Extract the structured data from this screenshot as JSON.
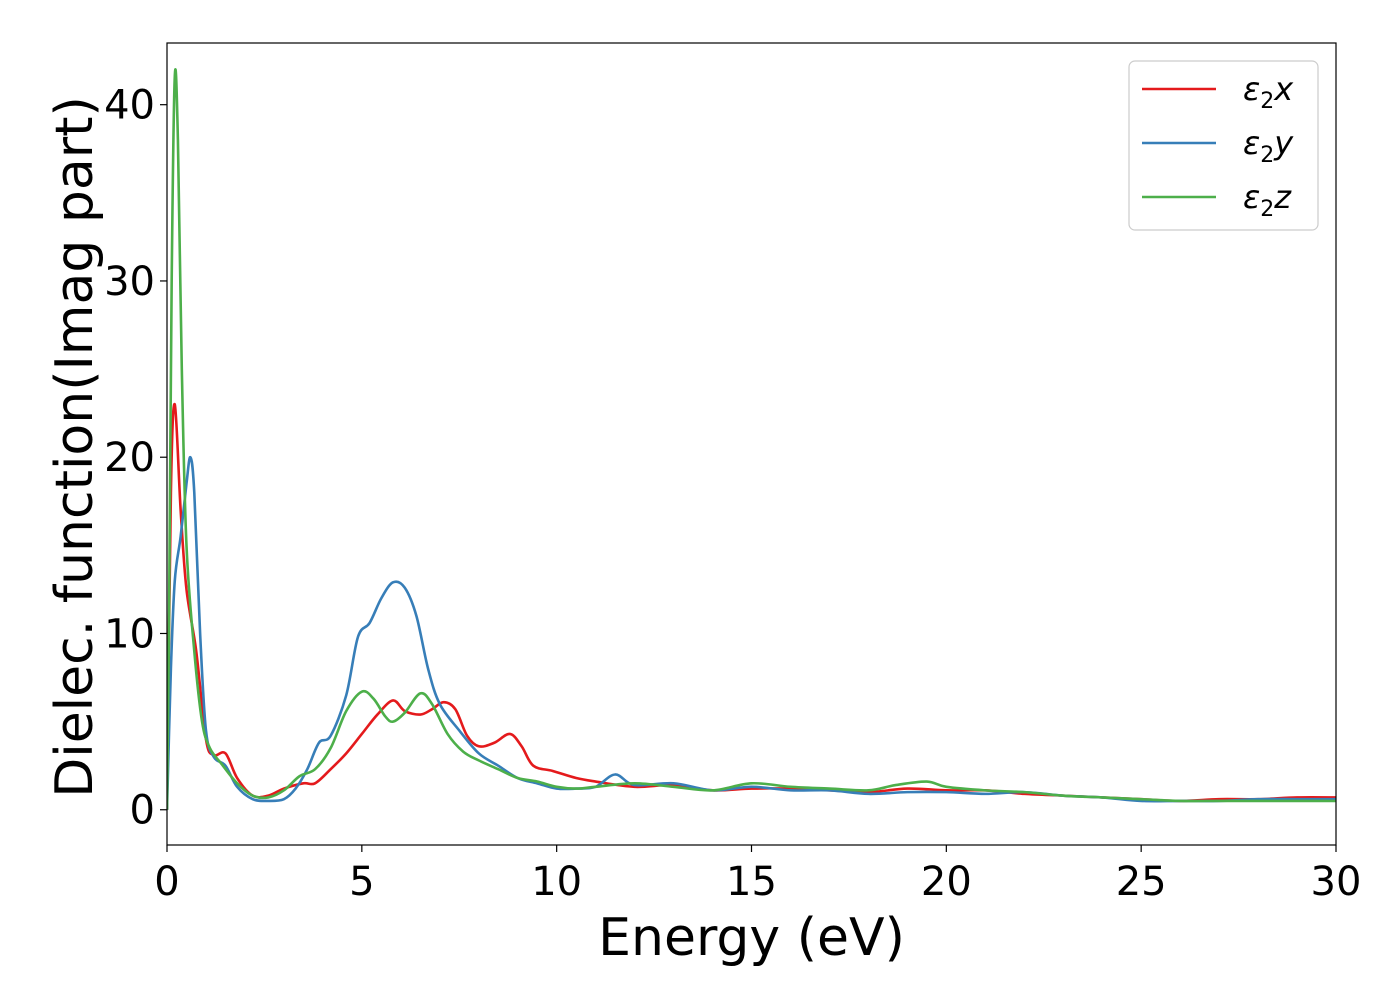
{
  "chart_data": {
    "type": "line",
    "xlabel": "Energy (eV)",
    "ylabel": "Dielec. function(Imag part)",
    "xlim": [
      0,
      30
    ],
    "ylim": [
      -2,
      43.5
    ],
    "xticks": [
      "0",
      "5",
      "10",
      "15",
      "20",
      "25",
      "30"
    ],
    "yticks": [
      "0",
      "10",
      "20",
      "30",
      "40"
    ],
    "grid": false,
    "legend_position": "top-right",
    "series": [
      {
        "name": "ε₂x",
        "legend": {
          "sym": "ε",
          "sub": "2",
          "var": "x"
        },
        "color": "#e41a1c",
        "points": [
          [
            0,
            0
          ],
          [
            0.1,
            18
          ],
          [
            0.2,
            23
          ],
          [
            0.35,
            17
          ],
          [
            0.5,
            12.5
          ],
          [
            0.75,
            9
          ],
          [
            1.0,
            4
          ],
          [
            1.2,
            3.1
          ],
          [
            1.5,
            3.2
          ],
          [
            1.8,
            1.8
          ],
          [
            2.2,
            0.8
          ],
          [
            2.6,
            0.8
          ],
          [
            3.0,
            1.2
          ],
          [
            3.5,
            1.5
          ],
          [
            3.8,
            1.5
          ],
          [
            4.2,
            2.3
          ],
          [
            4.6,
            3.2
          ],
          [
            5.0,
            4.3
          ],
          [
            5.4,
            5.4
          ],
          [
            5.8,
            6.2
          ],
          [
            6.1,
            5.6
          ],
          [
            6.5,
            5.4
          ],
          [
            6.8,
            5.7
          ],
          [
            7.1,
            6.1
          ],
          [
            7.4,
            5.7
          ],
          [
            7.7,
            4.2
          ],
          [
            8.0,
            3.6
          ],
          [
            8.4,
            3.8
          ],
          [
            8.8,
            4.3
          ],
          [
            9.1,
            3.6
          ],
          [
            9.4,
            2.5
          ],
          [
            9.9,
            2.2
          ],
          [
            10.5,
            1.8
          ],
          [
            11.0,
            1.6
          ],
          [
            12,
            1.3
          ],
          [
            13,
            1.4
          ],
          [
            14,
            1.1
          ],
          [
            15,
            1.2
          ],
          [
            16,
            1.2
          ],
          [
            17,
            1.1
          ],
          [
            18,
            1.0
          ],
          [
            19,
            1.2
          ],
          [
            20,
            1.1
          ],
          [
            21,
            1.1
          ],
          [
            22,
            0.9
          ],
          [
            23,
            0.8
          ],
          [
            24,
            0.7
          ],
          [
            25,
            0.6
          ],
          [
            26,
            0.5
          ],
          [
            27,
            0.6
          ],
          [
            28,
            0.6
          ],
          [
            29,
            0.7
          ],
          [
            30,
            0.7
          ]
        ]
      },
      {
        "name": "ε₂y",
        "legend": {
          "sym": "ε",
          "sub": "2",
          "var": "y"
        },
        "color": "#377eb8",
        "points": [
          [
            0,
            0
          ],
          [
            0.1,
            8
          ],
          [
            0.2,
            13
          ],
          [
            0.35,
            15.5
          ],
          [
            0.5,
            18.5
          ],
          [
            0.6,
            20
          ],
          [
            0.7,
            18
          ],
          [
            0.85,
            10
          ],
          [
            1.0,
            4.5
          ],
          [
            1.2,
            3
          ],
          [
            1.5,
            2.5
          ],
          [
            1.8,
            1.3
          ],
          [
            2.2,
            0.6
          ],
          [
            2.6,
            0.5
          ],
          [
            3.0,
            0.6
          ],
          [
            3.3,
            1.2
          ],
          [
            3.6,
            2.3
          ],
          [
            3.9,
            3.8
          ],
          [
            4.2,
            4.2
          ],
          [
            4.6,
            6.5
          ],
          [
            4.9,
            9.8
          ],
          [
            5.2,
            10.6
          ],
          [
            5.5,
            12
          ],
          [
            5.8,
            12.9
          ],
          [
            6.1,
            12.6
          ],
          [
            6.4,
            11
          ],
          [
            6.7,
            8.0
          ],
          [
            7.0,
            6.0
          ],
          [
            7.5,
            4.5
          ],
          [
            8.0,
            3.2
          ],
          [
            8.5,
            2.5
          ],
          [
            9.0,
            1.8
          ],
          [
            9.5,
            1.5
          ],
          [
            10,
            1.2
          ],
          [
            10.5,
            1.2
          ],
          [
            11.0,
            1.3
          ],
          [
            11.5,
            2.0
          ],
          [
            12,
            1.4
          ],
          [
            13,
            1.5
          ],
          [
            14,
            1.1
          ],
          [
            15,
            1.3
          ],
          [
            16,
            1.1
          ],
          [
            17,
            1.1
          ],
          [
            18,
            0.9
          ],
          [
            19,
            1.0
          ],
          [
            20,
            1.0
          ],
          [
            21,
            0.9
          ],
          [
            22,
            1.0
          ],
          [
            23,
            0.8
          ],
          [
            24,
            0.7
          ],
          [
            25,
            0.5
          ],
          [
            26,
            0.5
          ],
          [
            27,
            0.5
          ],
          [
            28,
            0.6
          ],
          [
            29,
            0.6
          ],
          [
            30,
            0.6
          ]
        ]
      },
      {
        "name": "ε₂z",
        "legend": {
          "sym": "ε",
          "sub": "2",
          "var": "z"
        },
        "color": "#4daf4a",
        "points": [
          [
            0,
            0
          ],
          [
            0.05,
            10
          ],
          [
            0.12,
            30
          ],
          [
            0.2,
            41.6
          ],
          [
            0.28,
            38
          ],
          [
            0.38,
            25
          ],
          [
            0.5,
            15
          ],
          [
            0.7,
            9
          ],
          [
            0.9,
            5
          ],
          [
            1.1,
            3.5
          ],
          [
            1.4,
            2.6
          ],
          [
            1.8,
            1.5
          ],
          [
            2.2,
            0.8
          ],
          [
            2.6,
            0.7
          ],
          [
            3.0,
            1.1
          ],
          [
            3.4,
            1.9
          ],
          [
            3.8,
            2.3
          ],
          [
            4.2,
            3.5
          ],
          [
            4.6,
            5.6
          ],
          [
            5.0,
            6.7
          ],
          [
            5.3,
            6.3
          ],
          [
            5.6,
            5.3
          ],
          [
            5.8,
            5.0
          ],
          [
            6.1,
            5.5
          ],
          [
            6.5,
            6.6
          ],
          [
            6.8,
            6.0
          ],
          [
            7.2,
            4.3
          ],
          [
            7.6,
            3.3
          ],
          [
            8.0,
            2.8
          ],
          [
            8.5,
            2.3
          ],
          [
            9.0,
            1.8
          ],
          [
            9.5,
            1.6
          ],
          [
            10,
            1.3
          ],
          [
            10.5,
            1.2
          ],
          [
            11,
            1.3
          ],
          [
            12,
            1.5
          ],
          [
            13,
            1.3
          ],
          [
            14,
            1.1
          ],
          [
            15,
            1.5
          ],
          [
            16,
            1.3
          ],
          [
            17,
            1.2
          ],
          [
            18,
            1.1
          ],
          [
            18.7,
            1.4
          ],
          [
            19.5,
            1.6
          ],
          [
            20,
            1.3
          ],
          [
            21,
            1.1
          ],
          [
            22,
            1.0
          ],
          [
            23,
            0.8
          ],
          [
            24,
            0.7
          ],
          [
            25,
            0.6
          ],
          [
            26,
            0.5
          ],
          [
            27,
            0.5
          ],
          [
            28,
            0.5
          ],
          [
            29,
            0.5
          ],
          [
            30,
            0.5
          ]
        ]
      }
    ]
  }
}
